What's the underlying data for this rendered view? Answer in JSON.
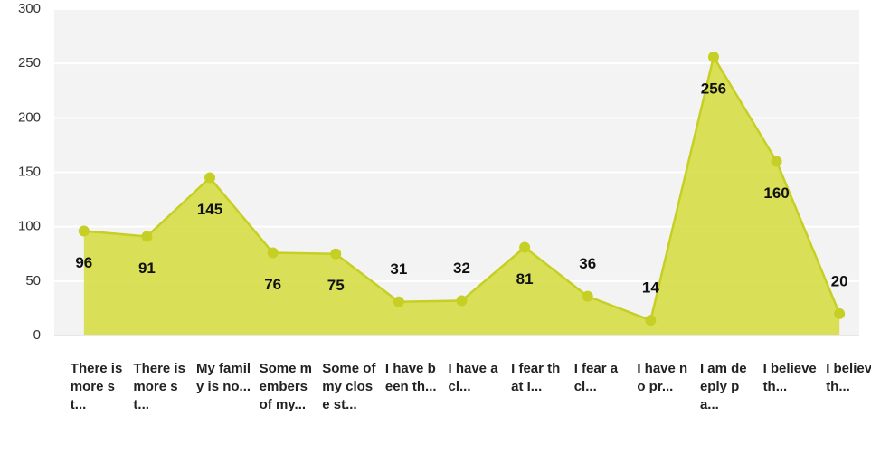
{
  "chart_data": {
    "type": "area",
    "categories": [
      "There is more st...",
      "There is more st...",
      "My family is no...",
      "Some members of my...",
      "Some of my close st...",
      "I have been th...",
      "I have a cl...",
      "I fear that I...",
      "I fear a cl...",
      "I have no pr...",
      "I am deeply pa...",
      "I believe th...",
      "I believe th..."
    ],
    "values": [
      96,
      91,
      145,
      76,
      75,
      31,
      32,
      81,
      36,
      14,
      256,
      160,
      20
    ],
    "color": "#d4dc3c",
    "line_color": "#c5cf24",
    "ylim": [
      0,
      300
    ],
    "yticks": [
      0,
      50,
      100,
      150,
      200,
      250,
      300
    ],
    "grid": true
  }
}
